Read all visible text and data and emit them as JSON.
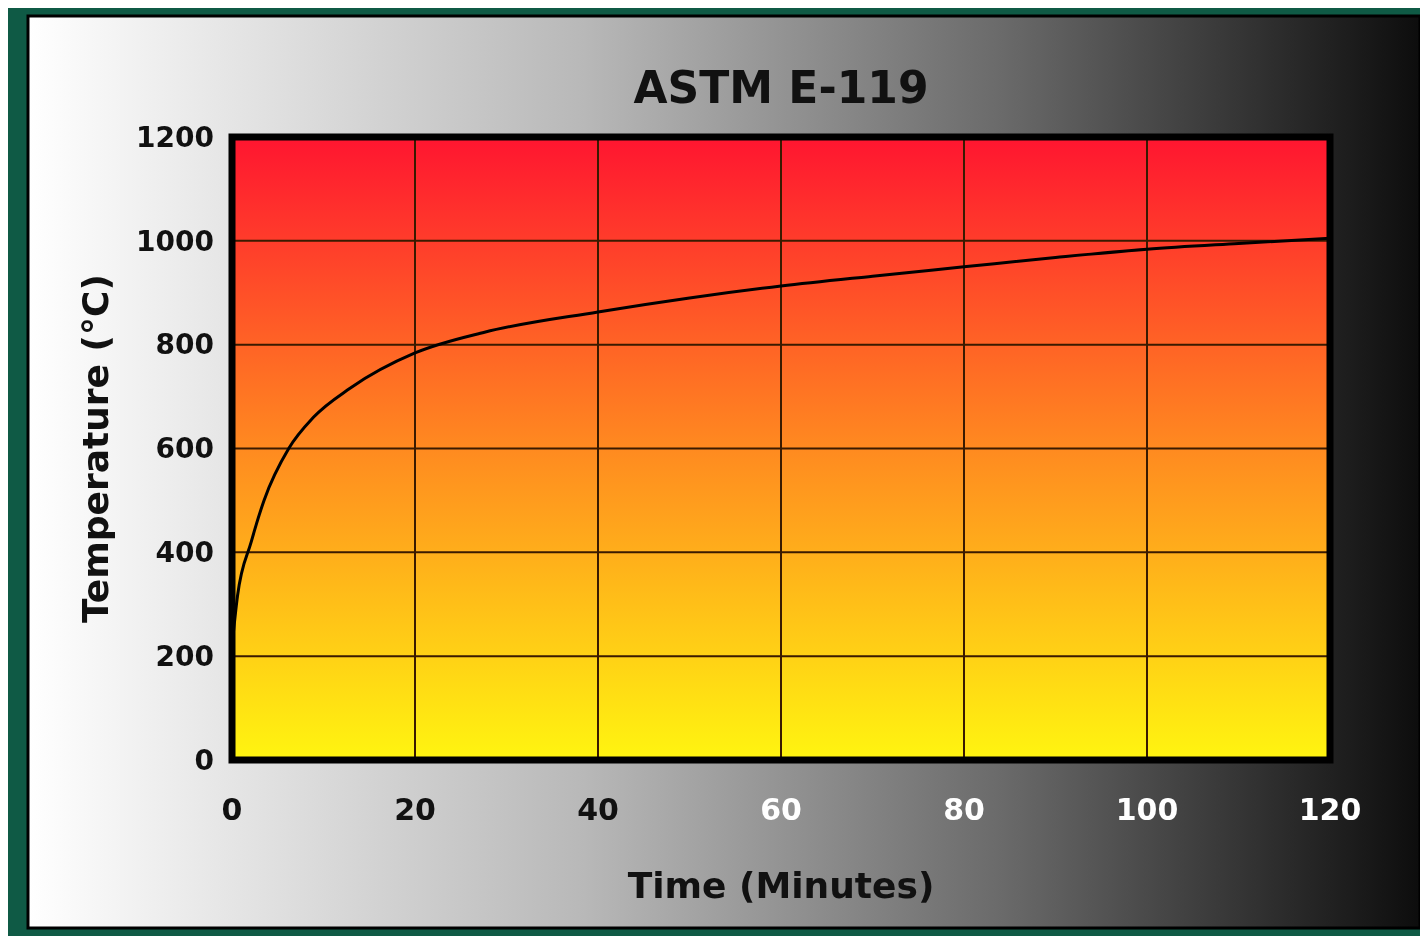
{
  "chart_data": {
    "type": "line",
    "title": "ASTM E-119",
    "xlabel": "Time (Minutes)",
    "ylabel": "Temperature (°C)",
    "x": [
      0,
      0.6,
      2.1,
      3.5,
      6.2,
      8.9,
      12.9,
      20,
      27.6,
      40,
      50,
      60,
      70,
      80,
      90,
      100,
      110,
      120
    ],
    "series": [
      {
        "color": "#000000",
        "values": [
          220,
          316,
          420,
          500,
          600,
          660,
          716,
          784,
          824,
          863,
          890,
          913,
          932,
          950,
          968,
          984,
          995,
          1005
        ]
      }
    ],
    "xlim": [
      0,
      120
    ],
    "xticks": [
      0,
      20,
      40,
      60,
      80,
      100,
      120
    ],
    "ylim": [
      0,
      1200
    ],
    "yticks": [
      0,
      200,
      400,
      600,
      800,
      1000,
      1200
    ],
    "grid": true,
    "marker": "none",
    "line_style": "solid"
  }
}
